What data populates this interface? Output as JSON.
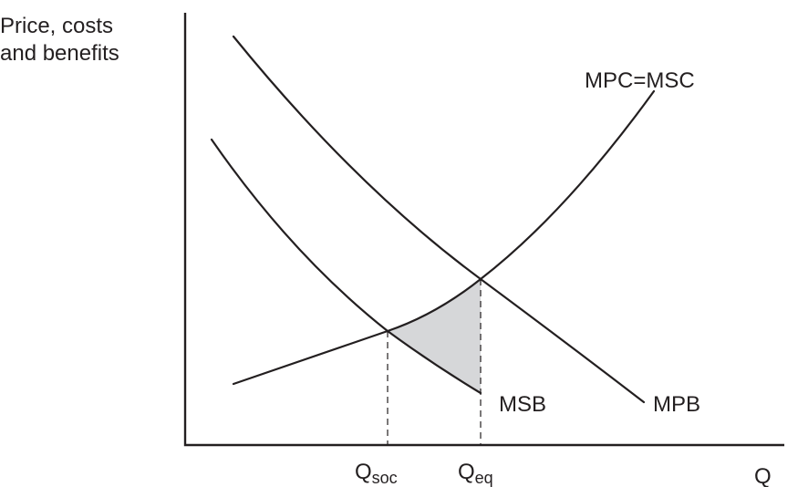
{
  "y_axis_label": {
    "line1": "Price, costs",
    "line2": "and benefits"
  },
  "x_axis_label": "Q",
  "curves": {
    "mpc_msc": "MPC=MSC",
    "mpb": "MPB",
    "msb": "MSB"
  },
  "quantities": {
    "q_soc": {
      "main": "Q",
      "sub": "soc"
    },
    "q_eq": {
      "main": "Q",
      "sub": "eq"
    }
  },
  "colors": {
    "ink": "#231f20",
    "shaded_area": "#d6d7d9"
  }
}
